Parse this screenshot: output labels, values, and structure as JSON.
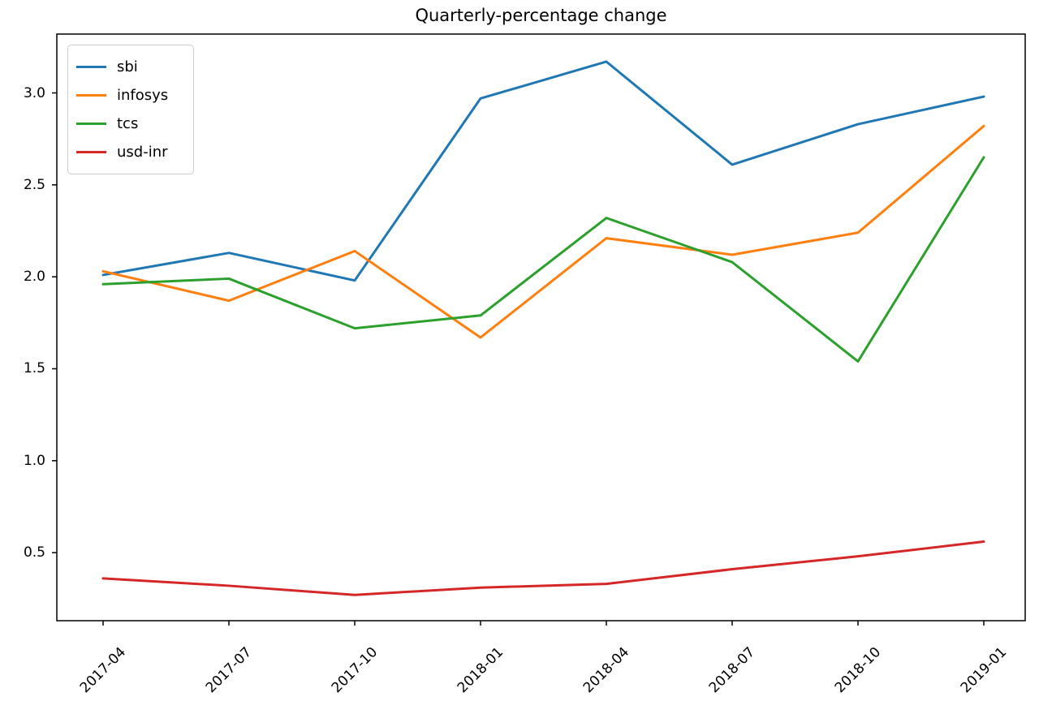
{
  "title": "Quarterly-percentage change",
  "chart_data": {
    "type": "line",
    "title": "Quarterly-percentage change",
    "xlabel": "",
    "ylabel": "",
    "grid": false,
    "legend_position": "upper left",
    "categories": [
      "2017-04",
      "2017-07",
      "2017-10",
      "2018-01",
      "2018-04",
      "2018-07",
      "2018-10",
      "2019-01"
    ],
    "series": [
      {
        "name": "sbi",
        "color": "#1f77b4",
        "values": [
          2.01,
          2.13,
          1.98,
          2.97,
          3.17,
          2.61,
          2.83,
          2.98
        ]
      },
      {
        "name": "infosys",
        "color": "#ff7f0e",
        "values": [
          2.03,
          1.87,
          2.14,
          1.67,
          2.21,
          2.12,
          2.24,
          2.82
        ]
      },
      {
        "name": "tcs",
        "color": "#2ca02c",
        "values": [
          1.96,
          1.99,
          1.72,
          1.79,
          2.32,
          2.08,
          1.54,
          2.65
        ]
      },
      {
        "name": "usd-inr",
        "color": "#d62728",
        "values": [
          0.36,
          0.32,
          0.27,
          0.31,
          0.33,
          0.41,
          0.48,
          0.56
        ]
      }
    ],
    "yticks": {
      "values": [
        0.5,
        1.0,
        1.5,
        2.0,
        2.5,
        3.0
      ],
      "labels": [
        "0.5",
        "1.0",
        "1.5",
        "2.0",
        "2.5",
        "3.0"
      ]
    },
    "ylim": [
      0.13,
      3.32
    ],
    "axis_color": "#000000"
  }
}
